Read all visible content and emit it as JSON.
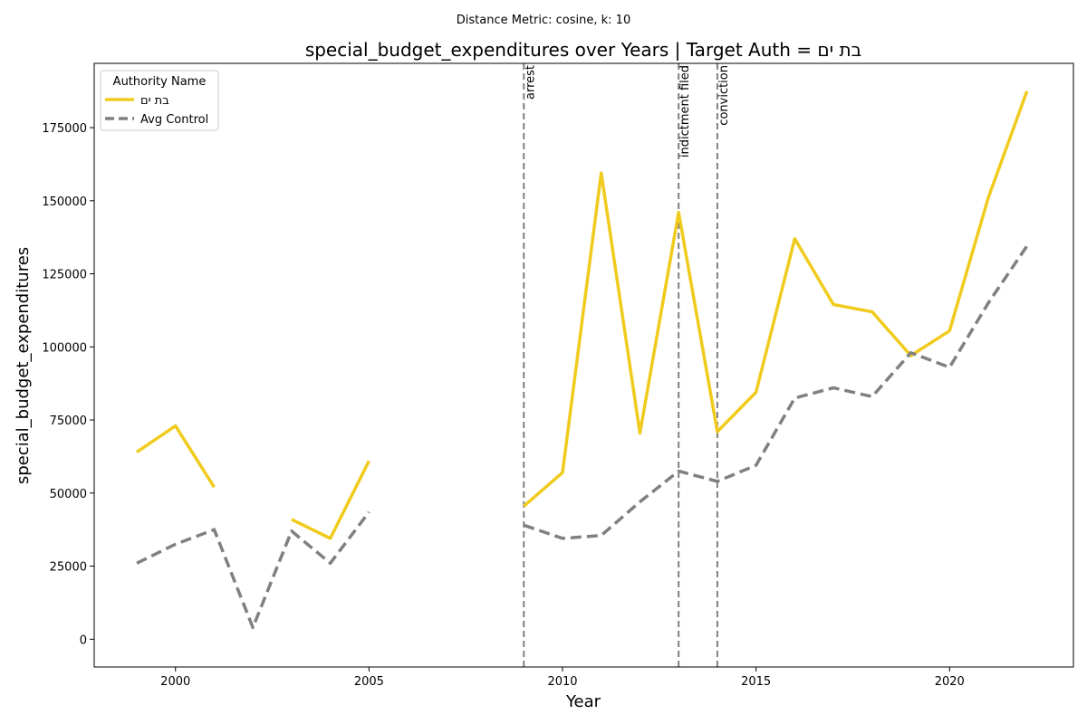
{
  "suptitle": "Distance Metric: cosine, k: 10",
  "chart_data": {
    "type": "line",
    "title": "special_budget_expenditures over Years | Target Auth = בת ים",
    "xlabel": "Year",
    "ylabel": "special_budget_expenditures",
    "xlim": [
      1997.9,
      2023.2
    ],
    "ylim": [
      -9500,
      197000
    ],
    "xticks": [
      2000,
      2005,
      2010,
      2015,
      2020
    ],
    "yticks": [
      0,
      25000,
      50000,
      75000,
      100000,
      125000,
      150000,
      175000
    ],
    "grid": false,
    "legend": {
      "title": "Authority Name",
      "placement": "top-left"
    },
    "series": [
      {
        "name": "בת ים",
        "color": "#F0CB1E",
        "style": "solid",
        "points": [
          [
            1999,
            64000
          ],
          [
            2000,
            73000
          ],
          [
            2001,
            52000
          ],
          [
            2002,
            null
          ],
          [
            2003,
            41000
          ],
          [
            2004,
            34500
          ],
          [
            2005,
            61000
          ],
          [
            2006,
            null
          ],
          [
            2007,
            null
          ],
          [
            2008,
            null
          ],
          [
            2009,
            45500
          ],
          [
            2010,
            57000
          ],
          [
            2011,
            159500
          ],
          [
            2012,
            70500
          ],
          [
            2013,
            146000
          ],
          [
            2014,
            71000
          ],
          [
            2015,
            84500
          ],
          [
            2016,
            137000
          ],
          [
            2017,
            114500
          ],
          [
            2018,
            112000
          ],
          [
            2019,
            97000
          ],
          [
            2020,
            105500
          ],
          [
            2021,
            151000
          ],
          [
            2022,
            187500
          ]
        ]
      },
      {
        "name": "Avg Control",
        "color": "#808080",
        "style": "dashed",
        "points": [
          [
            1999,
            26000
          ],
          [
            2000,
            32500
          ],
          [
            2001,
            37500
          ],
          [
            2002,
            4000
          ],
          [
            2003,
            37000
          ],
          [
            2004,
            26000
          ],
          [
            2005,
            43500
          ],
          [
            2006,
            null
          ],
          [
            2007,
            null
          ],
          [
            2008,
            null
          ],
          [
            2009,
            39000
          ],
          [
            2010,
            34500
          ],
          [
            2011,
            35500
          ],
          [
            2012,
            47000
          ],
          [
            2013,
            57500
          ],
          [
            2014,
            54000
          ],
          [
            2015,
            59500
          ],
          [
            2016,
            82500
          ],
          [
            2017,
            86000
          ],
          [
            2018,
            83000
          ],
          [
            2019,
            98000
          ],
          [
            2020,
            93000
          ],
          [
            2021,
            115000
          ],
          [
            2022,
            134500
          ]
        ]
      }
    ],
    "events": [
      {
        "year": 2009,
        "label": "arrest"
      },
      {
        "year": 2013,
        "label": "indictment filed"
      },
      {
        "year": 2014,
        "label": "conviction"
      }
    ]
  }
}
